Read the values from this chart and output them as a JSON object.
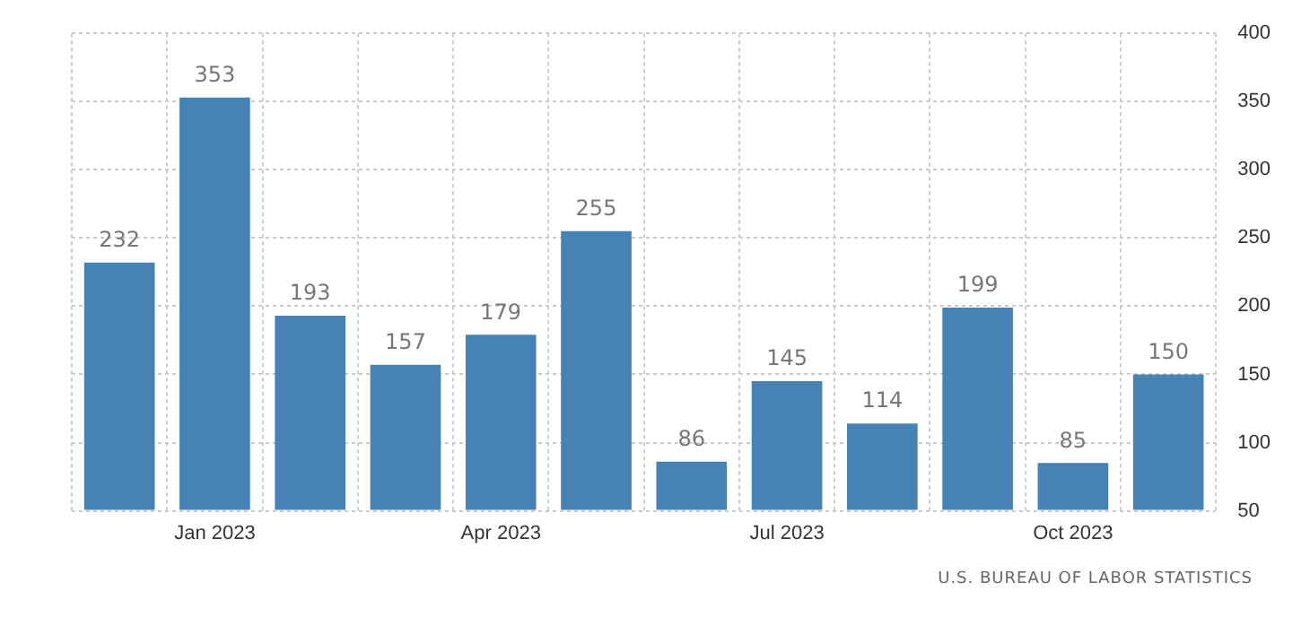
{
  "chart_data": {
    "type": "bar",
    "categories": [
      null,
      "Jan 2023",
      null,
      null,
      "Apr 2023",
      null,
      null,
      "Jul 2023",
      null,
      null,
      "Oct 2023",
      null
    ],
    "values": [
      232,
      353,
      193,
      157,
      179,
      255,
      86,
      145,
      114,
      199,
      85,
      150
    ],
    "color": "#4682b4",
    "ylim": [
      50,
      400
    ],
    "yticks": [
      50,
      100,
      150,
      200,
      250,
      300,
      350,
      400
    ],
    "grid": true,
    "legend": false,
    "data_labels": true,
    "annotations": [
      "U.S. BUREAU OF LABOR STATISTICS"
    ]
  }
}
